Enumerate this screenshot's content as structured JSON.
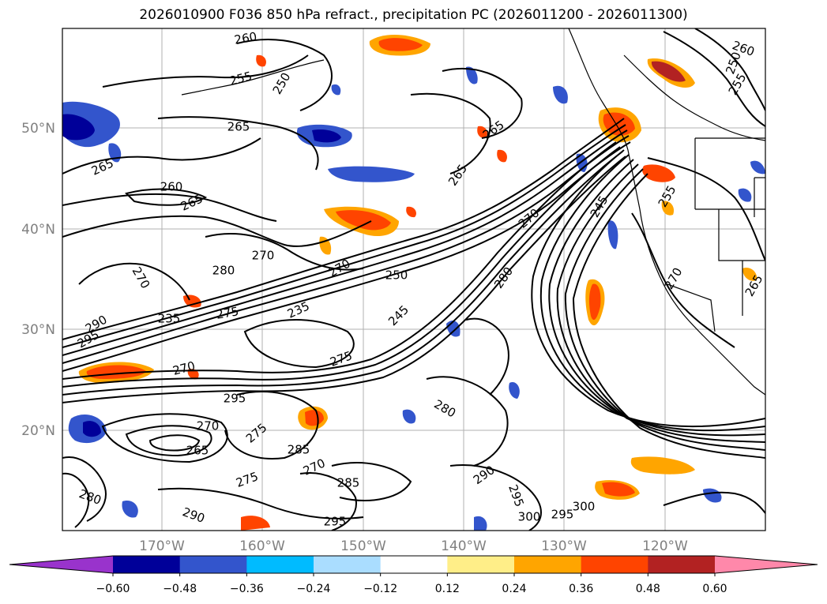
{
  "title": "2026010900 F036 850 hPa refract., precipitation PC (2026011200 - 2026011300)",
  "map": {
    "lat_ticks": [
      "50°N",
      "40°N",
      "30°N",
      "20°N"
    ],
    "lon_ticks": [
      "170°W",
      "160°W",
      "150°W",
      "140°W",
      "130°W",
      "120°W"
    ],
    "contour_labels": [
      "260",
      "255",
      "250",
      "265",
      "265",
      "265",
      "265",
      "260",
      "265",
      "270",
      "270",
      "280",
      "250",
      "270",
      "270",
      "280",
      "275",
      "290",
      "295",
      "235",
      "245",
      "235",
      "275",
      "270",
      "295",
      "275",
      "280",
      "270",
      "265",
      "285",
      "270",
      "275",
      "290",
      "285",
      "300",
      "295",
      "295",
      "280",
      "290",
      "300",
      "295",
      "245",
      "255",
      "260",
      "255",
      "250",
      "270",
      "265"
    ]
  },
  "colorbar": {
    "ticks": [
      "−0.60",
      "−0.48",
      "−0.36",
      "−0.24",
      "−0.12",
      "0.12",
      "0.24",
      "0.36",
      "0.48",
      "0.60"
    ],
    "colors": [
      "#9933cc",
      "#000099",
      "#3355cc",
      "#00bbff",
      "#aaddff",
      "#ffffff",
      "#ffee88",
      "#ffa500",
      "#ff4400",
      "#b22222",
      "#ff88aa"
    ]
  },
  "colors": {
    "grid": "#b0b0b0",
    "contour": "#000000",
    "coast": "#000000"
  }
}
